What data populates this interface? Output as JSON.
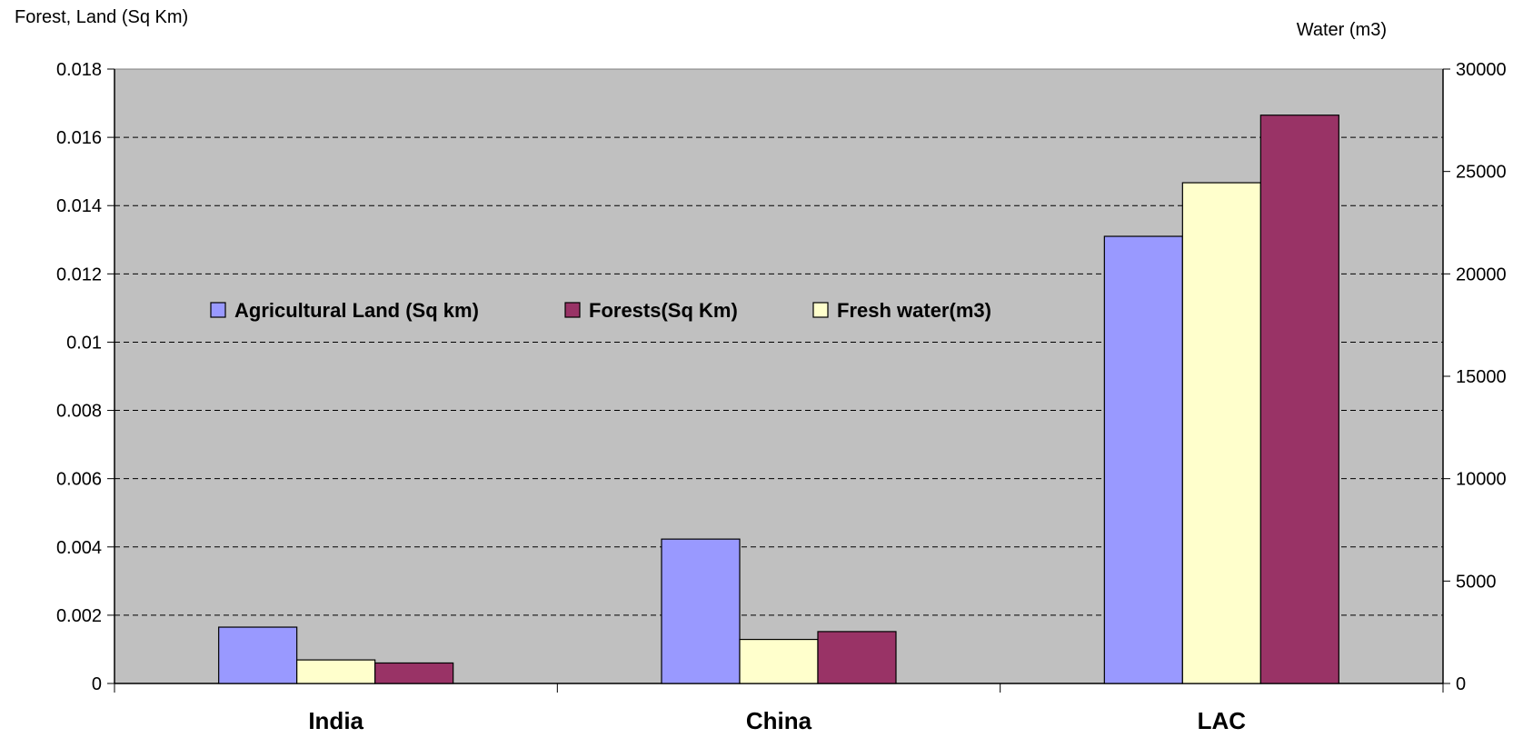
{
  "chart_data": {
    "type": "bar",
    "categories": [
      "India",
      "China",
      "LAC"
    ],
    "ylabel": "Forest,  Land (Sq Km)",
    "y2label": "Water (m3)",
    "ylim": [
      0,
      0.018
    ],
    "y2lim": [
      0,
      30000
    ],
    "yticks": [
      "0",
      "0.002",
      "0.004",
      "0.006",
      "0.008",
      "0.01",
      "0.012",
      "0.014",
      "0.016",
      "0.018"
    ],
    "y2ticks": [
      "0",
      "5000",
      "10000",
      "15000",
      "20000",
      "25000",
      "30000"
    ],
    "grid": true,
    "plot_background": "#c0c0c0",
    "legend_position": "upper-left inside plot",
    "series": [
      {
        "name": "Agricultural Land (Sq km)",
        "axis": "left",
        "color": "#9999ff",
        "values": [
          0.00165,
          0.00423,
          0.0131
        ]
      },
      {
        "name": "Forests(Sq Km)",
        "axis": "left",
        "color": "#993366",
        "values": [
          0.0006,
          0.00152,
          0.01665
        ]
      },
      {
        "name": "Fresh water(m3)",
        "axis": "right",
        "color": "#ffffcc",
        "values": [
          1150,
          2150,
          24450
        ]
      }
    ]
  }
}
